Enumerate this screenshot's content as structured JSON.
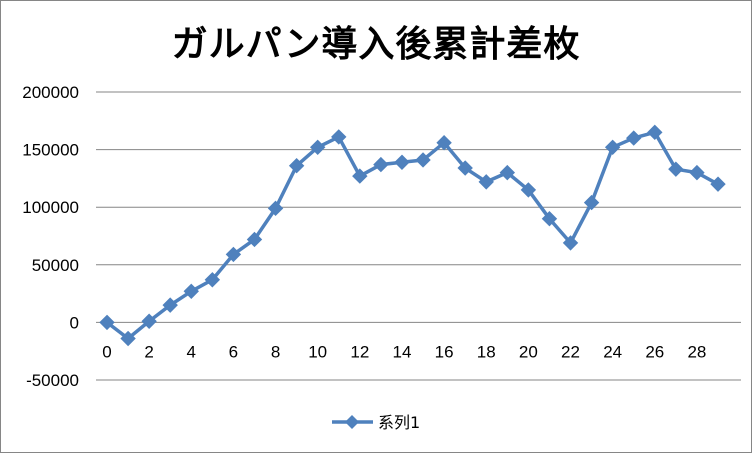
{
  "chart_data": {
    "type": "line",
    "title": "ガルパン導入後累計差枚",
    "xlabel": "",
    "ylabel": "",
    "ylim": [
      -50000,
      200000
    ],
    "yticks": [
      -50000,
      0,
      50000,
      100000,
      150000,
      200000
    ],
    "xlim": [
      0,
      29
    ],
    "xticks": [
      0,
      2,
      4,
      6,
      8,
      10,
      12,
      14,
      16,
      18,
      20,
      22,
      24,
      26,
      28
    ],
    "grid": "horizontal",
    "legend_position": "bottom",
    "series_color": "#4F81BD",
    "marker": "diamond",
    "series": [
      {
        "name": "系列1",
        "x": [
          0,
          1,
          2,
          3,
          4,
          5,
          6,
          7,
          8,
          9,
          10,
          11,
          12,
          13,
          14,
          15,
          16,
          17,
          18,
          19,
          20,
          21,
          22,
          23,
          24,
          25,
          26,
          27,
          28,
          29
        ],
        "values": [
          0,
          -14000,
          1000,
          15000,
          27000,
          37000,
          59000,
          72000,
          99000,
          136000,
          152000,
          161000,
          127000,
          137000,
          139000,
          141000,
          156000,
          134000,
          122000,
          130000,
          115000,
          90000,
          69000,
          104000,
          152000,
          160000,
          165000,
          133000,
          130000,
          120000
        ]
      }
    ]
  }
}
